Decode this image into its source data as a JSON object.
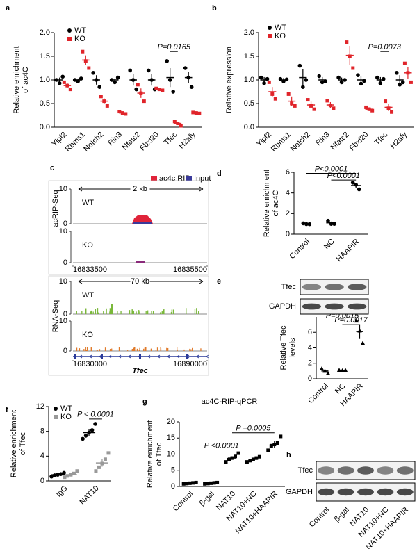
{
  "chart_data": [
    {
      "panel": "a",
      "type": "dot",
      "ylabel": [
        "Relative enrichment",
        "of ac4C"
      ],
      "categories": [
        "Yipf2",
        "Rbms1",
        "Notch2",
        "Rin3",
        "Nfatc2",
        "Fbxl20",
        "Tfec",
        "H2afy"
      ],
      "ylim": [
        0,
        2
      ],
      "yticks": [
        {
          "value": 0,
          "label": "0.0"
        },
        0.5,
        {
          "value": 1,
          "label": "1.0"
        },
        1.5,
        {
          "value": 2,
          "label": "2.0"
        }
      ],
      "series": [
        {
          "name": "WT",
          "color": "#000000",
          "marker": "circle",
          "values": [
            1.0,
            1.0,
            1.0,
            1.0,
            1.0,
            1.0,
            1.05,
            1.05
          ],
          "errors": [
            0.05,
            0.03,
            0.1,
            0.03,
            0.12,
            0.12,
            0.2,
            0.12
          ],
          "points": [
            [
              1.0,
              0.93,
              1.07
            ],
            [
              1.0,
              0.97,
              1.03
            ],
            [
              1.15,
              1.0,
              0.85
            ],
            [
              1.0,
              0.95,
              1.05
            ],
            [
              1.2,
              1.0,
              0.8
            ],
            [
              1.2,
              1.0,
              0.8
            ],
            [
              1.4,
              1.0,
              0.75
            ],
            [
              1.25,
              1.05,
              0.85
            ]
          ]
        },
        {
          "name": "KO",
          "color": "#e0242a",
          "marker": "square",
          "values": [
            0.88,
            1.42,
            0.55,
            0.3,
            0.72,
            0.8,
            0.08,
            0.3
          ],
          "errors": [
            0.05,
            0.1,
            0.06,
            0.02,
            0.1,
            0.02,
            0.03,
            0.01
          ],
          "points": [
            [
              0.95,
              0.88,
              0.8
            ],
            [
              1.6,
              1.4,
              1.25
            ],
            [
              0.65,
              0.55,
              0.45
            ],
            [
              0.33,
              0.3,
              0.28
            ],
            [
              0.9,
              0.72,
              0.55
            ],
            [
              0.82,
              0.8,
              0.78
            ],
            [
              0.12,
              0.08,
              0.03
            ],
            [
              0.31,
              0.3,
              0.29
            ]
          ]
        }
      ],
      "annotations": [
        "P=0.0165"
      ]
    },
    {
      "panel": "b",
      "type": "dot",
      "ylabel": [
        "Relative expression"
      ],
      "categories": [
        "Yipf2",
        "Rbms1",
        "Notch2",
        "Rin3",
        "Nfatc2",
        "Fbxl20",
        "Tfec",
        "H2afy"
      ],
      "ylim": [
        0,
        2
      ],
      "yticks": [
        {
          "value": 0,
          "label": "0.0"
        },
        0.5,
        {
          "value": 1,
          "label": "1.0"
        },
        1.5,
        {
          "value": 2,
          "label": "2.0"
        }
      ],
      "series": [
        {
          "name": "WT",
          "color": "#000000",
          "marker": "circle",
          "values": [
            1.0,
            1.0,
            1.05,
            1.0,
            1.0,
            1.0,
            1.0,
            1.0
          ],
          "errors": [
            0.06,
            0.04,
            0.18,
            0.06,
            0.05,
            0.08,
            0.06,
            0.1
          ],
          "points": [
            [
              1.05,
              0.93,
              1.02
            ],
            [
              1.02,
              0.97,
              1.01
            ],
            [
              1.3,
              0.85,
              1.0
            ],
            [
              1.08,
              0.95,
              0.97
            ],
            [
              1.05,
              0.95,
              1.0
            ],
            [
              1.1,
              0.92,
              0.98
            ],
            [
              1.05,
              0.93,
              1.02
            ],
            [
              1.15,
              0.9,
              0.95
            ]
          ]
        },
        {
          "name": "KO",
          "color": "#e0242a",
          "marker": "square",
          "values": [
            0.75,
            0.55,
            0.47,
            0.47,
            1.52,
            0.38,
            0.42,
            1.15
          ],
          "errors": [
            0.1,
            0.1,
            0.07,
            0.06,
            0.2,
            0.04,
            0.08,
            0.12
          ],
          "points": [
            [
              0.95,
              0.7,
              0.6
            ],
            [
              0.7,
              0.5,
              0.45
            ],
            [
              0.58,
              0.45,
              0.38
            ],
            [
              0.56,
              0.46,
              0.4
            ],
            [
              1.8,
              1.5,
              1.25
            ],
            [
              0.42,
              0.38,
              0.35
            ],
            [
              0.55,
              0.4,
              0.32
            ],
            [
              1.35,
              1.15,
              0.95
            ]
          ]
        }
      ],
      "annotations": [
        "P=0.0073"
      ]
    },
    {
      "panel": "c",
      "type": "track",
      "legend": [
        {
          "name": "ac4c RIP",
          "color": "#e0243a"
        },
        {
          "name": "Input",
          "color": "#3a3a9a"
        }
      ],
      "sections": [
        {
          "label": "acRIP-Seq",
          "scale": "2 kb",
          "xlim": [
            16833500,
            16835500
          ],
          "xticks": [
            16833500,
            16835500
          ],
          "tracks": [
            {
              "name": "WT",
              "ylim": [
                0,
                10
              ],
              "yticks": [
                0,
                10
              ]
            },
            {
              "name": "KO",
              "ylim": [
                0,
                10
              ],
              "yticks": [
                0,
                10
              ]
            }
          ]
        },
        {
          "label": "RNA-Seq",
          "scale": "70 kb",
          "xlim": [
            16830000,
            16890000
          ],
          "xticks": [
            16830000,
            16890000
          ],
          "gene": "Tfec",
          "tracks": [
            {
              "name": "WT",
              "ylim": [
                0,
                10
              ],
              "yticks": [
                0,
                10
              ]
            },
            {
              "name": "KO",
              "ylim": [
                0,
                10
              ],
              "yticks": [
                0,
                10
              ]
            }
          ]
        }
      ]
    },
    {
      "panel": "d",
      "type": "dot",
      "ylabel": [
        "Relative enrichment",
        "of ac4C"
      ],
      "categories": [
        "Control",
        "NC",
        "HAAPIR"
      ],
      "ylim": [
        0,
        6
      ],
      "yticks": [
        0,
        2,
        4,
        6
      ],
      "series": [
        {
          "color": "#000000",
          "marker": "circle",
          "values": [
            1.0,
            1.1,
            4.72
          ],
          "errors": [
            0.04,
            0.12,
            0.22
          ],
          "points": [
            [
              1.05,
              0.98,
              0.97
            ],
            [
              1.3,
              1.0,
              1.0
            ],
            [
              5.0,
              4.8,
              4.35
            ]
          ]
        }
      ],
      "annotations": [
        "P<0.0001",
        "P<0.0001"
      ]
    },
    {
      "panel": "e",
      "type": "dot",
      "ylabel": [
        "Relative Tfec",
        "levels"
      ],
      "blot_rows": [
        "Tfec",
        "GAPDH"
      ],
      "categories": [
        "Control",
        "NC",
        "HAAPIR"
      ],
      "ylim": [
        0,
        8
      ],
      "yticks": [
        0,
        2,
        4,
        6
      ],
      "series": [
        {
          "color": "#000000",
          "marker": "triangle",
          "values": [
            1.0,
            1.08,
            6.1
          ],
          "errors": [
            0.22,
            0.05,
            0.95
          ],
          "points": [
            [
              1.3,
              1.0,
              0.7
            ],
            [
              1.1,
              1.05,
              1.1
            ],
            [
              7.5,
              6.2,
              4.6
            ]
          ]
        }
      ],
      "annotations": [
        "P=0.0015",
        "P=0.0017"
      ]
    },
    {
      "panel": "f",
      "type": "dot",
      "ylabel": [
        "Relative enrichment",
        "of Tfec"
      ],
      "categories": [
        "IgG",
        "NAT10"
      ],
      "ylim": [
        0,
        12
      ],
      "yticks": [
        0,
        4,
        8,
        12
      ],
      "series": [
        {
          "name": "WT",
          "color": "#000000",
          "marker": "circle",
          "values": [
            1.0,
            7.8
          ],
          "errors": [
            0.18,
            0.6
          ],
          "points": [
            [
              0.7,
              0.9,
              1.0,
              1.1,
              1.3
            ],
            [
              6.8,
              7.3,
              7.8,
              8.2,
              9.2
            ]
          ]
        },
        {
          "name": "KO",
          "color": "#999999",
          "marker": "square",
          "values": [
            1.0,
            2.9
          ],
          "errors": [
            0.3,
            0.6
          ],
          "points": [
            [
              0.6,
              0.8,
              1.0,
              1.2,
              1.6
            ],
            [
              1.6,
              2.2,
              2.8,
              3.5,
              4.5
            ]
          ]
        }
      ],
      "annotations": [
        "P < 0.0001"
      ]
    },
    {
      "panel": "g",
      "type": "dot",
      "title": "ac4C-RIP-qPCR",
      "ylabel": [
        "Relative enrichment",
        "of Tfec"
      ],
      "categories": [
        "Control",
        "β-gal",
        "NAT10",
        "NAT10+NC",
        "NAT10+HAAPIR"
      ],
      "ylim": [
        0,
        20
      ],
      "yticks": [
        0,
        5,
        10,
        15,
        20
      ],
      "series": [
        {
          "color": "#000000",
          "marker": "square",
          "values": [
            1.0,
            1.0,
            8.8,
            8.4,
            13.0
          ],
          "errors": [
            0.12,
            0.15,
            0.55,
            0.5,
            1.0
          ],
          "points": [
            [
              0.8,
              0.9,
              1.0,
              1.1,
              1.2
            ],
            [
              0.8,
              0.9,
              1.0,
              1.1,
              1.2
            ],
            [
              7.6,
              8.3,
              8.8,
              9.3,
              10.3
            ],
            [
              7.6,
              8.0,
              8.4,
              8.8,
              9.2
            ],
            [
              11.2,
              12.5,
              13,
              13.5,
              15.5
            ]
          ]
        }
      ],
      "annotations": [
        "P <0.0001",
        "P =0.0005"
      ]
    },
    {
      "panel": "h",
      "type": "blot",
      "blot_rows": [
        "Tfec",
        "GAPDH"
      ],
      "categories": [
        "Control",
        "β-gal",
        "NAT10",
        "NAT10+NC",
        "NAT10+HAAPIR"
      ]
    }
  ]
}
